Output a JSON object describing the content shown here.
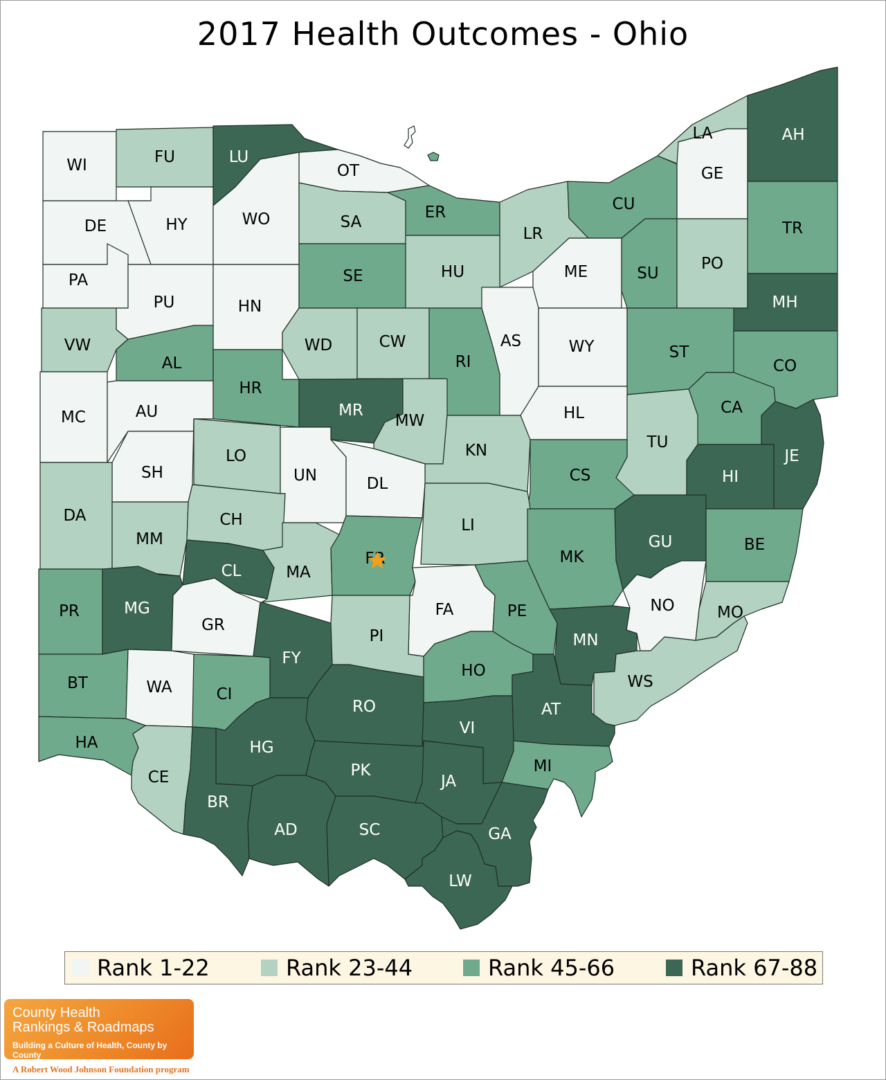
{
  "title": "2017 Health Outcomes - Ohio",
  "colors": {
    "rank_1_22": "#f1f5f3",
    "rank_23_44": "#b3d2c2",
    "rank_45_66": "#70aa8d",
    "rank_67_88": "#3d6755",
    "star": "#f2a01c"
  },
  "legend": [
    {
      "label": "Rank 1-22",
      "tier": 1
    },
    {
      "label": "Rank 23-44",
      "tier": 2
    },
    {
      "label": "Rank 45-66",
      "tier": 3
    },
    {
      "label": "Rank 67-88",
      "tier": 4
    }
  ],
  "counties": [
    {
      "abbr": "WI",
      "tier": 1
    },
    {
      "abbr": "FU",
      "tier": 2
    },
    {
      "abbr": "LU",
      "tier": 4
    },
    {
      "abbr": "OT",
      "tier": 1
    },
    {
      "abbr": "DE",
      "tier": 1
    },
    {
      "abbr": "HY",
      "tier": 1
    },
    {
      "abbr": "WO",
      "tier": 1
    },
    {
      "abbr": "SA",
      "tier": 2
    },
    {
      "abbr": "ER",
      "tier": 3
    },
    {
      "abbr": "LR",
      "tier": 2
    },
    {
      "abbr": "CU",
      "tier": 3
    },
    {
      "abbr": "LA",
      "tier": 2
    },
    {
      "abbr": "GE",
      "tier": 1
    },
    {
      "abbr": "AH",
      "tier": 4
    },
    {
      "abbr": "TR",
      "tier": 3
    },
    {
      "abbr": "PA",
      "tier": 1
    },
    {
      "abbr": "PU",
      "tier": 1
    },
    {
      "abbr": "HN",
      "tier": 1
    },
    {
      "abbr": "SE",
      "tier": 3
    },
    {
      "abbr": "HU",
      "tier": 2
    },
    {
      "abbr": "ME",
      "tier": 1
    },
    {
      "abbr": "SU",
      "tier": 3
    },
    {
      "abbr": "PO",
      "tier": 2
    },
    {
      "abbr": "MH",
      "tier": 4
    },
    {
      "abbr": "VW",
      "tier": 2
    },
    {
      "abbr": "AL",
      "tier": 3
    },
    {
      "abbr": "WD",
      "tier": 2
    },
    {
      "abbr": "CW",
      "tier": 2
    },
    {
      "abbr": "RI",
      "tier": 3
    },
    {
      "abbr": "AS",
      "tier": 1
    },
    {
      "abbr": "WY",
      "tier": 1
    },
    {
      "abbr": "ST",
      "tier": 3
    },
    {
      "abbr": "CO",
      "tier": 3
    },
    {
      "abbr": "MC",
      "tier": 1
    },
    {
      "abbr": "AU",
      "tier": 1
    },
    {
      "abbr": "HR",
      "tier": 3
    },
    {
      "abbr": "MR",
      "tier": 4
    },
    {
      "abbr": "MW",
      "tier": 2
    },
    {
      "abbr": "KN",
      "tier": 2
    },
    {
      "abbr": "HL",
      "tier": 1
    },
    {
      "abbr": "CA",
      "tier": 3
    },
    {
      "abbr": "TU",
      "tier": 2
    },
    {
      "abbr": "JE",
      "tier": 4
    },
    {
      "abbr": "HI",
      "tier": 4
    },
    {
      "abbr": "SH",
      "tier": 1
    },
    {
      "abbr": "LO",
      "tier": 2
    },
    {
      "abbr": "UN",
      "tier": 1
    },
    {
      "abbr": "DL",
      "tier": 1
    },
    {
      "abbr": "CS",
      "tier": 3
    },
    {
      "abbr": "DA",
      "tier": 2
    },
    {
      "abbr": "MM",
      "tier": 2
    },
    {
      "abbr": "CH",
      "tier": 2
    },
    {
      "abbr": "LI",
      "tier": 2
    },
    {
      "abbr": "GU",
      "tier": 4
    },
    {
      "abbr": "BE",
      "tier": 3
    },
    {
      "abbr": "CL",
      "tier": 4
    },
    {
      "abbr": "MA",
      "tier": 2
    },
    {
      "abbr": "FR",
      "tier": 3
    },
    {
      "abbr": "MK",
      "tier": 3
    },
    {
      "abbr": "NO",
      "tier": 1
    },
    {
      "abbr": "MO",
      "tier": 2
    },
    {
      "abbr": "PR",
      "tier": 3
    },
    {
      "abbr": "MG",
      "tier": 4
    },
    {
      "abbr": "GR",
      "tier": 1
    },
    {
      "abbr": "FA",
      "tier": 1
    },
    {
      "abbr": "PE",
      "tier": 3
    },
    {
      "abbr": "MN",
      "tier": 4
    },
    {
      "abbr": "FY",
      "tier": 4
    },
    {
      "abbr": "PI",
      "tier": 2
    },
    {
      "abbr": "HO",
      "tier": 3
    },
    {
      "abbr": "WS",
      "tier": 2
    },
    {
      "abbr": "BT",
      "tier": 3
    },
    {
      "abbr": "WA",
      "tier": 1
    },
    {
      "abbr": "CI",
      "tier": 3
    },
    {
      "abbr": "RO",
      "tier": 4
    },
    {
      "abbr": "AT",
      "tier": 4
    },
    {
      "abbr": "VI",
      "tier": 4
    },
    {
      "abbr": "HA",
      "tier": 3
    },
    {
      "abbr": "HG",
      "tier": 4
    },
    {
      "abbr": "CE",
      "tier": 2
    },
    {
      "abbr": "PK",
      "tier": 4
    },
    {
      "abbr": "JA",
      "tier": 4
    },
    {
      "abbr": "MI",
      "tier": 3
    },
    {
      "abbr": "BR",
      "tier": 4
    },
    {
      "abbr": "AD",
      "tier": 4
    },
    {
      "abbr": "SC",
      "tier": 4
    },
    {
      "abbr": "GA",
      "tier": 4
    },
    {
      "abbr": "LW",
      "tier": 4
    }
  ],
  "capital_marker": {
    "county": "FR",
    "icon": "star-icon"
  },
  "logo": {
    "line1": "County Health",
    "line2": "Rankings & Roadmaps",
    "tagline": "Building a Culture of Health, County by County"
  },
  "footer": "A Robert Wood Johnson Foundation program"
}
